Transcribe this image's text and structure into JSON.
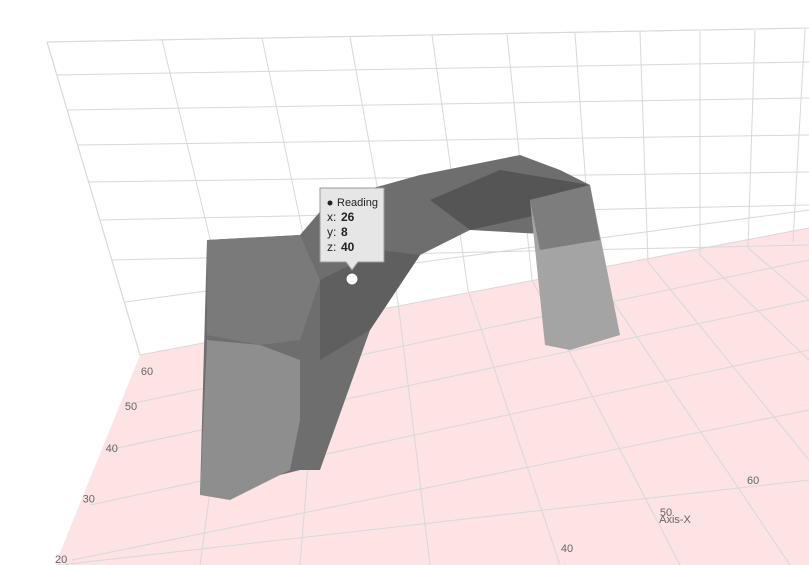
{
  "chart_data": {
    "type": "surface3d",
    "x_label": "Axis-X",
    "xticks": [
      40,
      50,
      60
    ],
    "yticks": [
      20,
      30,
      40,
      50,
      60
    ],
    "tooltip_labels": [
      "x:",
      "y:",
      "z:"
    ],
    "series": [
      {
        "name": "Reading",
        "color": "#555555",
        "x": [
          26
        ],
        "y": [
          8
        ],
        "z": [
          40
        ]
      }
    ],
    "floor_color": "#fde3e4"
  }
}
